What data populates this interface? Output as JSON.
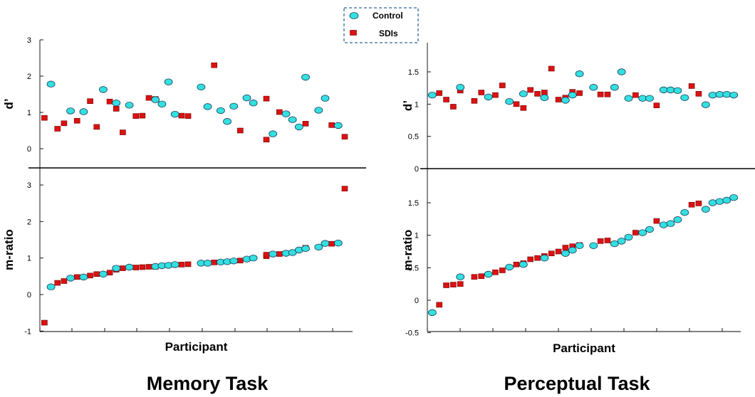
{
  "legend": {
    "items": [
      {
        "label": "Control",
        "shape": "ellipse",
        "color": "#33e0e0"
      },
      {
        "label": "SDIs",
        "shape": "square",
        "color": "#dd1111"
      }
    ]
  },
  "colors": {
    "control": "#33e0e0",
    "sdi": "#dd1111",
    "outline": "#1a3a5a",
    "sdi_outline": "#6a0000",
    "legend_border": "#336699"
  },
  "chart_data": [
    {
      "type": "scatter",
      "title": "Memory Task",
      "xlabel": "Participant",
      "panels": [
        {
          "ylabel": "d’",
          "ylim": [
            -0.5,
            3
          ],
          "yticks": [
            0,
            1,
            2,
            3
          ],
          "control": [
            [
              2,
              1.78
            ],
            [
              5,
              1.04
            ],
            [
              7,
              1.02
            ],
            [
              10,
              1.63
            ],
            [
              12,
              1.26
            ],
            [
              14,
              1.2
            ],
            [
              18,
              1.35
            ],
            [
              19,
              1.23
            ],
            [
              20,
              1.84
            ],
            [
              21,
              0.95
            ],
            [
              25,
              1.7
            ],
            [
              26,
              1.16
            ],
            [
              28,
              1.05
            ],
            [
              29,
              0.75
            ],
            [
              30,
              1.17
            ],
            [
              32,
              1.4
            ],
            [
              33,
              1.26
            ],
            [
              36,
              0.41
            ],
            [
              38,
              0.96
            ],
            [
              39,
              0.8
            ],
            [
              40,
              0.6
            ],
            [
              41,
              1.97
            ],
            [
              43,
              1.06
            ],
            [
              44,
              1.39
            ],
            [
              46,
              0.64
            ]
          ],
          "sdi": [
            [
              1,
              0.85
            ],
            [
              3,
              0.55
            ],
            [
              4,
              0.7
            ],
            [
              6,
              0.77
            ],
            [
              8,
              1.31
            ],
            [
              9,
              0.6
            ],
            [
              11,
              1.3
            ],
            [
              12,
              1.1
            ],
            [
              13,
              0.45
            ],
            [
              15,
              0.9
            ],
            [
              16,
              0.91
            ],
            [
              17,
              1.4
            ],
            [
              18,
              1.37
            ],
            [
              22,
              0.91
            ],
            [
              23,
              0.9
            ],
            [
              27,
              2.3
            ],
            [
              31,
              0.5
            ],
            [
              35,
              0.25
            ],
            [
              35,
              1.38
            ],
            [
              37,
              1.01
            ],
            [
              41,
              0.69
            ],
            [
              45,
              0.65
            ],
            [
              47,
              0.33
            ]
          ]
        },
        {
          "ylabel": "m-ratio",
          "ylim": [
            -1,
            3.4
          ],
          "yticks": [
            -1,
            0,
            1,
            2,
            3
          ],
          "control": [
            [
              2,
              0.21
            ],
            [
              5,
              0.45
            ],
            [
              7,
              0.48
            ],
            [
              10,
              0.56
            ],
            [
              12,
              0.72
            ],
            [
              14,
              0.75
            ],
            [
              18,
              0.77
            ],
            [
              19,
              0.79
            ],
            [
              20,
              0.8
            ],
            [
              21,
              0.82
            ],
            [
              25,
              0.86
            ],
            [
              26,
              0.86
            ],
            [
              28,
              0.89
            ],
            [
              29,
              0.9
            ],
            [
              30,
              0.92
            ],
            [
              32,
              0.97
            ],
            [
              33,
              1.0
            ],
            [
              36,
              1.11
            ],
            [
              38,
              1.13
            ],
            [
              39,
              1.15
            ],
            [
              40,
              1.22
            ],
            [
              41,
              1.26
            ],
            [
              43,
              1.3
            ],
            [
              44,
              1.4
            ],
            [
              46,
              1.41
            ]
          ],
          "sdi": [
            [
              1,
              -0.77
            ],
            [
              3,
              0.32
            ],
            [
              4,
              0.37
            ],
            [
              6,
              0.48
            ],
            [
              8,
              0.52
            ],
            [
              9,
              0.56
            ],
            [
              11,
              0.6
            ],
            [
              12,
              0.68
            ],
            [
              13,
              0.72
            ],
            [
              15,
              0.74
            ],
            [
              16,
              0.75
            ],
            [
              17,
              0.76
            ],
            [
              18,
              0.76
            ],
            [
              22,
              0.82
            ],
            [
              23,
              0.83
            ],
            [
              27,
              0.88
            ],
            [
              31,
              0.93
            ],
            [
              35,
              1.05
            ],
            [
              35,
              1.09
            ],
            [
              37,
              1.11
            ],
            [
              41,
              1.28
            ],
            [
              45,
              1.39
            ],
            [
              47,
              2.9
            ]
          ]
        }
      ]
    },
    {
      "type": "scatter",
      "title": "Perceptual Task",
      "xlabel": "Participant",
      "panels": [
        {
          "ylabel": "d’",
          "ylim": [
            0,
            1.85
          ],
          "yticks": [
            0,
            0.5,
            1,
            1.5
          ],
          "yticklabels": [
            "0",
            "0.5",
            "1",
            "1.5"
          ],
          "control": [
            [
              1,
              1.14
            ],
            [
              5,
              1.26
            ],
            [
              9,
              1.11
            ],
            [
              12,
              1.04
            ],
            [
              14,
              1.16
            ],
            [
              17,
              1.1
            ],
            [
              20,
              1.06
            ],
            [
              21,
              1.14
            ],
            [
              22,
              1.47
            ],
            [
              24,
              1.26
            ],
            [
              27,
              1.26
            ],
            [
              28,
              1.5
            ],
            [
              29,
              1.09
            ],
            [
              31,
              1.09
            ],
            [
              32,
              1.09
            ],
            [
              34,
              1.22
            ],
            [
              35,
              1.22
            ],
            [
              36,
              1.21
            ],
            [
              37,
              1.1
            ],
            [
              40,
              0.99
            ],
            [
              41,
              1.14
            ],
            [
              42,
              1.15
            ],
            [
              43,
              1.15
            ],
            [
              44,
              1.14
            ]
          ],
          "sdi": [
            [
              2,
              1.17
            ],
            [
              3,
              1.07
            ],
            [
              4,
              0.96
            ],
            [
              5,
              1.21
            ],
            [
              7,
              1.05
            ],
            [
              8,
              1.18
            ],
            [
              10,
              1.14
            ],
            [
              11,
              1.29
            ],
            [
              13,
              1.0
            ],
            [
              14,
              0.94
            ],
            [
              15,
              1.22
            ],
            [
              16,
              1.16
            ],
            [
              17,
              1.18
            ],
            [
              18,
              1.55
            ],
            [
              19,
              1.07
            ],
            [
              20,
              1.1
            ],
            [
              21,
              1.19
            ],
            [
              22,
              1.17
            ],
            [
              25,
              1.15
            ],
            [
              26,
              1.15
            ],
            [
              30,
              1.14
            ],
            [
              33,
              0.98
            ],
            [
              38,
              1.28
            ],
            [
              39,
              1.16
            ]
          ]
        },
        {
          "ylabel": "m-ratio",
          "ylim": [
            -0.5,
            1.85
          ],
          "yticks": [
            -0.5,
            0,
            0.5,
            1,
            1.5
          ],
          "yticklabels": [
            "-0.5",
            "0",
            "0.5",
            "1",
            "1.5"
          ],
          "control": [
            [
              1,
              -0.19
            ],
            [
              5,
              0.36
            ],
            [
              9,
              0.4
            ],
            [
              12,
              0.51
            ],
            [
              14,
              0.55
            ],
            [
              17,
              0.65
            ],
            [
              20,
              0.72
            ],
            [
              21,
              0.77
            ],
            [
              22,
              0.84
            ],
            [
              24,
              0.84
            ],
            [
              27,
              0.87
            ],
            [
              28,
              0.91
            ],
            [
              29,
              0.97
            ],
            [
              31,
              1.04
            ],
            [
              32,
              1.09
            ],
            [
              34,
              1.16
            ],
            [
              35,
              1.18
            ],
            [
              36,
              1.24
            ],
            [
              37,
              1.35
            ],
            [
              40,
              1.4
            ],
            [
              41,
              1.5
            ],
            [
              42,
              1.52
            ],
            [
              43,
              1.54
            ],
            [
              44,
              1.58
            ]
          ],
          "sdi": [
            [
              2,
              -0.07
            ],
            [
              3,
              0.23
            ],
            [
              4,
              0.24
            ],
            [
              5,
              0.25
            ],
            [
              7,
              0.36
            ],
            [
              8,
              0.37
            ],
            [
              10,
              0.43
            ],
            [
              11,
              0.46
            ],
            [
              13,
              0.55
            ],
            [
              14,
              0.57
            ],
            [
              15,
              0.63
            ],
            [
              16,
              0.65
            ],
            [
              17,
              0.68
            ],
            [
              18,
              0.72
            ],
            [
              19,
              0.75
            ],
            [
              20,
              0.81
            ],
            [
              21,
              0.83
            ],
            [
              22,
              0.85
            ],
            [
              25,
              0.91
            ],
            [
              26,
              0.92
            ],
            [
              30,
              1.04
            ],
            [
              33,
              1.22
            ],
            [
              38,
              1.47
            ],
            [
              39,
              1.49
            ]
          ]
        }
      ]
    }
  ]
}
